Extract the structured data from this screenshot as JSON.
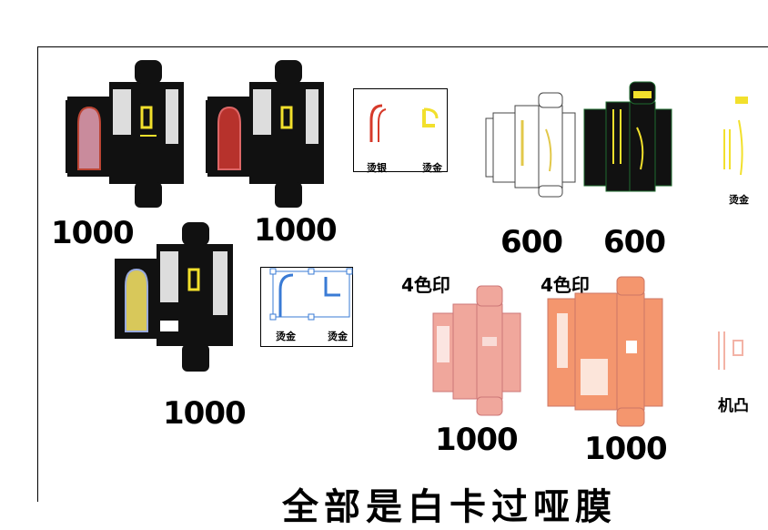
{
  "quantities": {
    "q1": "1000",
    "q2": "1000",
    "q3": "600",
    "q4": "600",
    "q5": "1000",
    "q6": "1000",
    "q7": "1000"
  },
  "tags": {
    "four_color_a": "4色印",
    "four_color_b": "4色印"
  },
  "finish_labels": {
    "hot_silver": "烫银",
    "hot_gold_1": "烫金",
    "hot_gold_2": "烫金",
    "hot_gold_3": "烫金",
    "hot_gold_4": "烫金",
    "emboss": "机凸"
  },
  "footer_text": "全部是白卡过哑膜",
  "colors": {
    "box_black": "#111111",
    "gold": "#f2e02c",
    "red_foil": "#d63a2a",
    "pink_box": "#f0a79c",
    "orange_box": "#f4966e",
    "dark_green": "#1e6b2e",
    "blue_sel": "#3a7bd5"
  }
}
